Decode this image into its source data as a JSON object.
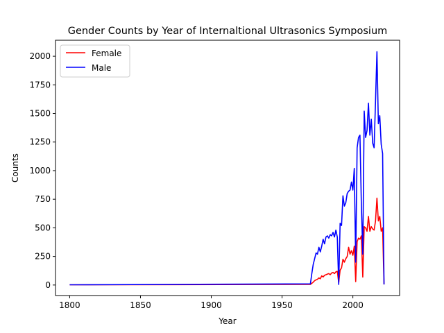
{
  "chart_data": {
    "type": "line",
    "title": "Gender Counts by Year of Internaltional Ultrasonics Symposium",
    "xlabel": "Year",
    "ylabel": "Counts",
    "xlim": [
      1790,
      2033
    ],
    "ylim": [
      -92,
      2140
    ],
    "xticks": [
      1800,
      1850,
      1900,
      1950,
      2000
    ],
    "yticks": [
      0,
      250,
      500,
      750,
      1000,
      1250,
      1500,
      1750,
      2000
    ],
    "xtick_labels": [
      "1800",
      "1850",
      "1900",
      "1950",
      "2000"
    ],
    "ytick_labels": [
      "0",
      "250",
      "500",
      "750",
      "1000",
      "1250",
      "1500",
      "1750",
      "2000"
    ],
    "grid": false,
    "legend": {
      "placement": "upper-left",
      "entries": [
        {
          "name": "Female",
          "color": "#ff0000"
        },
        {
          "name": "Male",
          "color": "#0000ff"
        }
      ]
    },
    "series": [
      {
        "name": "Female",
        "color": "#ff0000",
        "points": [
          [
            1800,
            2
          ],
          [
            1970,
            5
          ],
          [
            1971,
            15
          ],
          [
            1972,
            25
          ],
          [
            1973,
            38
          ],
          [
            1974,
            45
          ],
          [
            1975,
            50
          ],
          [
            1976,
            62
          ],
          [
            1977,
            55
          ],
          [
            1978,
            80
          ],
          [
            1979,
            70
          ],
          [
            1980,
            85
          ],
          [
            1981,
            90
          ],
          [
            1982,
            95
          ],
          [
            1983,
            100
          ],
          [
            1984,
            90
          ],
          [
            1985,
            105
          ],
          [
            1986,
            110
          ],
          [
            1987,
            100
          ],
          [
            1988,
            115
          ],
          [
            1989,
            120
          ],
          [
            1990,
            20
          ],
          [
            1991,
            130
          ],
          [
            1992,
            150
          ],
          [
            1993,
            225
          ],
          [
            1994,
            200
          ],
          [
            1995,
            230
          ],
          [
            1996,
            250
          ],
          [
            1997,
            330
          ],
          [
            1998,
            270
          ],
          [
            1999,
            300
          ],
          [
            2000,
            260
          ],
          [
            2001,
            340
          ],
          [
            2002,
            30
          ],
          [
            2003,
            380
          ],
          [
            2004,
            410
          ],
          [
            2005,
            400
          ],
          [
            2006,
            430
          ],
          [
            2007,
            70
          ],
          [
            2008,
            510
          ],
          [
            2009,
            500
          ],
          [
            2010,
            470
          ],
          [
            2011,
            600
          ],
          [
            2012,
            470
          ],
          [
            2013,
            510
          ],
          [
            2014,
            490
          ],
          [
            2015,
            480
          ],
          [
            2016,
            560
          ],
          [
            2017,
            760
          ],
          [
            2018,
            560
          ],
          [
            2019,
            600
          ],
          [
            2020,
            470
          ],
          [
            2021,
            500
          ],
          [
            2022,
            5
          ]
        ]
      },
      {
        "name": "Male",
        "color": "#0000ff",
        "points": [
          [
            1800,
            2
          ],
          [
            1970,
            10
          ],
          [
            1971,
            100
          ],
          [
            1972,
            180
          ],
          [
            1973,
            230
          ],
          [
            1974,
            280
          ],
          [
            1975,
            270
          ],
          [
            1976,
            330
          ],
          [
            1977,
            290
          ],
          [
            1978,
            340
          ],
          [
            1979,
            400
          ],
          [
            1980,
            360
          ],
          [
            1981,
            420
          ],
          [
            1982,
            430
          ],
          [
            1983,
            410
          ],
          [
            1984,
            440
          ],
          [
            1985,
            430
          ],
          [
            1986,
            460
          ],
          [
            1987,
            420
          ],
          [
            1988,
            480
          ],
          [
            1989,
            420
          ],
          [
            1990,
            5
          ],
          [
            1991,
            540
          ],
          [
            1992,
            520
          ],
          [
            1993,
            780
          ],
          [
            1994,
            690
          ],
          [
            1995,
            720
          ],
          [
            1996,
            800
          ],
          [
            1997,
            820
          ],
          [
            1998,
            830
          ],
          [
            1999,
            900
          ],
          [
            2000,
            830
          ],
          [
            2001,
            1020
          ],
          [
            2002,
            200
          ],
          [
            2003,
            1200
          ],
          [
            2004,
            1290
          ],
          [
            2005,
            1310
          ],
          [
            2006,
            700
          ],
          [
            2007,
            270
          ],
          [
            2008,
            1520
          ],
          [
            2009,
            1290
          ],
          [
            2010,
            1350
          ],
          [
            2011,
            1590
          ],
          [
            2012,
            1310
          ],
          [
            2013,
            1450
          ],
          [
            2014,
            1240
          ],
          [
            2015,
            1200
          ],
          [
            2016,
            1610
          ],
          [
            2017,
            2040
          ],
          [
            2018,
            1410
          ],
          [
            2019,
            1480
          ],
          [
            2020,
            1230
          ],
          [
            2021,
            1150
          ],
          [
            2022,
            5
          ]
        ]
      }
    ]
  }
}
